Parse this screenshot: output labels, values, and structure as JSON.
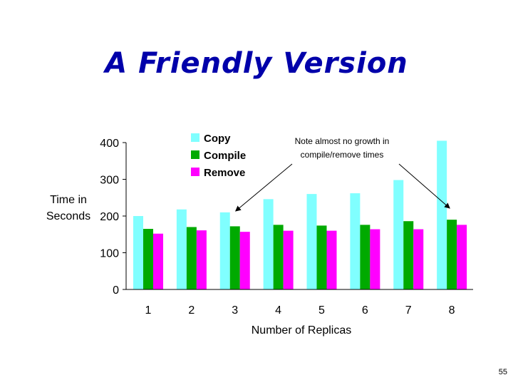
{
  "slide": {
    "title": "A Friendly Version",
    "page_number": "55"
  },
  "chart_data": {
    "type": "bar",
    "categories": [
      "1",
      "2",
      "3",
      "4",
      "5",
      "6",
      "7",
      "8"
    ],
    "series": [
      {
        "name": "Copy",
        "color": "#80ffff",
        "values": [
          200,
          218,
          210,
          246,
          260,
          262,
          298,
          405
        ]
      },
      {
        "name": "Compile",
        "color": "#00aa00",
        "values": [
          165,
          170,
          172,
          176,
          174,
          176,
          186,
          190
        ]
      },
      {
        "name": "Remove",
        "color": "#ff00ff",
        "values": [
          152,
          161,
          157,
          160,
          160,
          164,
          164,
          176
        ]
      }
    ],
    "ylim": [
      0,
      400
    ],
    "yticks": [
      "0",
      "100",
      "200",
      "300",
      "400"
    ],
    "ylabel": [
      "Time in",
      "Seconds"
    ],
    "xlabel": "Number of Replicas",
    "legend_position": "top-center",
    "grid": false,
    "annotation": {
      "lines": [
        "Note almost no growth in",
        "compile/remove times"
      ],
      "points_to_categories": [
        "3",
        "8"
      ]
    }
  }
}
